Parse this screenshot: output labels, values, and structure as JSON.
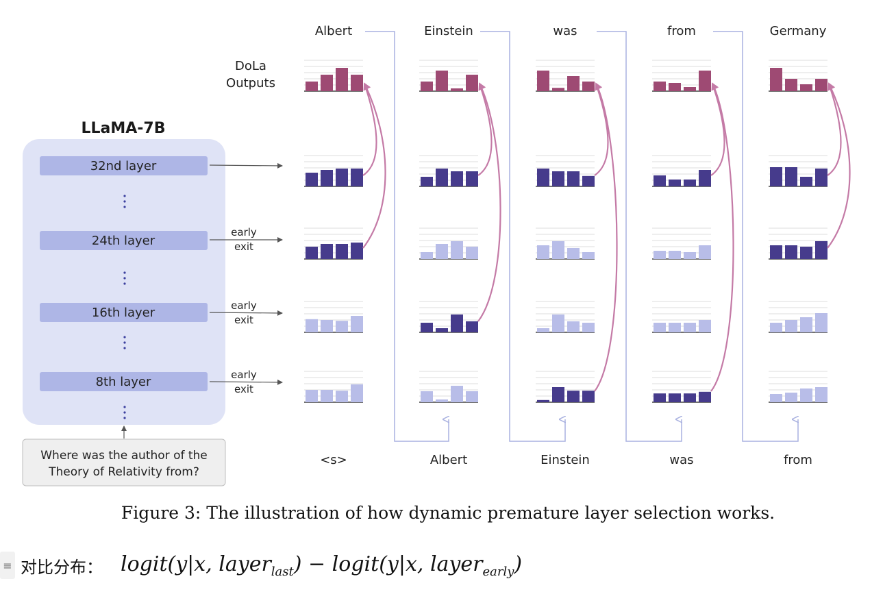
{
  "model": {
    "title": "LLaMA-7B",
    "layers": [
      "32nd layer",
      "24th layer",
      "16th layer",
      "8th layer"
    ],
    "early_exit_label": [
      "early",
      "exit"
    ],
    "prompt_lines": [
      "Where was the author of the",
      "Theory of Relativity from?"
    ]
  },
  "outputs_label": [
    "DoLa",
    "Outputs"
  ],
  "columns": [
    {
      "output_token": "Albert",
      "input_token": "<s>",
      "selected_premature_layer": "24th layer",
      "bars": {
        "dola": [
          0.35,
          0.6,
          0.85,
          0.6
        ],
        "L32": [
          0.5,
          0.6,
          0.65,
          0.65
        ],
        "L24": [
          0.45,
          0.55,
          0.55,
          0.6
        ],
        "L16": [
          0.48,
          0.45,
          0.42,
          0.6
        ],
        "L8": [
          0.45,
          0.45,
          0.42,
          0.65
        ]
      },
      "highlight": {
        "L32": true,
        "L24": true,
        "L16": false,
        "L8": false
      }
    },
    {
      "output_token": "Einstein",
      "input_token": "Albert",
      "selected_premature_layer": "16th layer",
      "bars": {
        "dola": [
          0.35,
          0.75,
          0.1,
          0.6
        ],
        "L32": [
          0.35,
          0.65,
          0.55,
          0.55
        ],
        "L24": [
          0.25,
          0.55,
          0.65,
          0.45
        ],
        "L16": [
          0.35,
          0.15,
          0.65,
          0.4
        ],
        "L8": [
          0.4,
          0.1,
          0.6,
          0.4
        ]
      },
      "highlight": {
        "L32": true,
        "L24": false,
        "L16": true,
        "L8": false
      }
    },
    {
      "output_token": "was",
      "input_token": "Einstein",
      "selected_premature_layer": "8th layer",
      "bars": {
        "dola": [
          0.75,
          0.12,
          0.55,
          0.35
        ],
        "L32": [
          0.65,
          0.55,
          0.55,
          0.38
        ],
        "L24": [
          0.5,
          0.65,
          0.4,
          0.25
        ],
        "L16": [
          0.15,
          0.65,
          0.4,
          0.35
        ],
        "L8": [
          0.08,
          0.55,
          0.42,
          0.42
        ]
      },
      "highlight": {
        "L32": true,
        "L24": false,
        "L16": false,
        "L8": true
      }
    },
    {
      "output_token": "from",
      "input_token": "was",
      "selected_premature_layer": "8th layer",
      "bars": {
        "dola": [
          0.35,
          0.3,
          0.15,
          0.75
        ],
        "L32": [
          0.4,
          0.25,
          0.25,
          0.6
        ],
        "L24": [
          0.3,
          0.3,
          0.25,
          0.5
        ],
        "L16": [
          0.35,
          0.35,
          0.35,
          0.45
        ],
        "L8": [
          0.32,
          0.32,
          0.32,
          0.38
        ]
      },
      "highlight": {
        "L32": true,
        "L24": false,
        "L16": false,
        "L8": true
      }
    },
    {
      "output_token": "Germany",
      "input_token": "from",
      "selected_premature_layer": "24th layer",
      "bars": {
        "dola": [
          0.85,
          0.45,
          0.25,
          0.45
        ],
        "L32": [
          0.7,
          0.7,
          0.35,
          0.65
        ],
        "L24": [
          0.5,
          0.5,
          0.45,
          0.65
        ],
        "L16": [
          0.35,
          0.45,
          0.55,
          0.7
        ],
        "L8": [
          0.3,
          0.35,
          0.5,
          0.55
        ]
      },
      "highlight": {
        "L32": true,
        "L24": true,
        "L16": false,
        "L8": false
      }
    }
  ],
  "colors": {
    "dola": "#9e4a73",
    "dark": "#463b8c",
    "light": "#b8bde8",
    "arrow": "#c47aa6",
    "connector": "#a9b1e0",
    "panel": "#dfe3f6",
    "layer_box": "#aeb6e6",
    "dots": "#3b3f9e"
  },
  "caption": "Figure 3: The illustration of how dynamic premature layer selection works.",
  "formula": {
    "label": "对比分布：",
    "parts": [
      "logit(y|x, layer",
      "last",
      ") − logit(y|x, layer",
      "early",
      ")"
    ]
  }
}
